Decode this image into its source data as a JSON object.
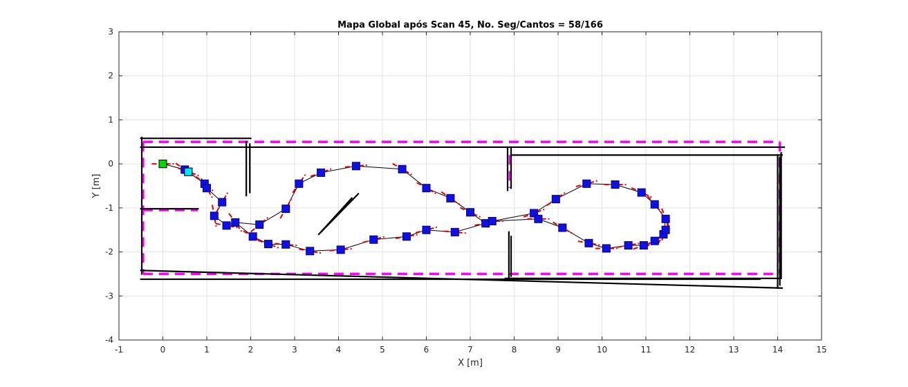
{
  "chart_data": {
    "type": "scatter",
    "title": "Mapa Global após Scan 45, No. Seg/Cantos = 58/166",
    "xlabel": "X [m]",
    "ylabel": "Y [m]",
    "xlim": [
      -1,
      15
    ],
    "ylim": [
      -4,
      3
    ],
    "xticks": [
      "-1",
      "0",
      "1",
      "2",
      "3",
      "4",
      "5",
      "6",
      "7",
      "8",
      "9",
      "10",
      "11",
      "12",
      "13",
      "14",
      "15"
    ],
    "yticks": [
      "-4",
      "-3",
      "-2",
      "-1",
      "0",
      "1",
      "2",
      "3"
    ],
    "grid": true,
    "colors": {
      "pose": "#1010e0",
      "pose_border": "#000080",
      "trajectory": "#000000",
      "heading": "#e00000",
      "wall_estimate": "#000000",
      "true_map": "#ff00ff",
      "start": "#00d800",
      "current": "#00e8ff",
      "grid": "#e3e3e3"
    },
    "true_map_segments": [
      [
        [
          -0.45,
          0.5
        ],
        [
          14.05,
          0.5
        ]
      ],
      [
        [
          -0.45,
          -2.5
        ],
        [
          14.05,
          -2.5
        ]
      ],
      [
        [
          -0.45,
          0.5
        ],
        [
          -0.45,
          -2.5
        ]
      ],
      [
        [
          14.05,
          0.5
        ],
        [
          14.05,
          -2.5
        ]
      ],
      [
        [
          -0.45,
          -1.05
        ],
        [
          0.8,
          -1.05
        ]
      ],
      [
        [
          7.9,
          0.2
        ],
        [
          7.9,
          -0.55
        ]
      ]
    ],
    "estimated_walls": [
      [
        [
          -0.5,
          0.58
        ],
        [
          2.0,
          0.58
        ]
      ],
      [
        [
          -0.5,
          0.38
        ],
        [
          14.15,
          0.38
        ]
      ],
      [
        [
          7.95,
          0.2
        ],
        [
          14.1,
          0.2
        ]
      ],
      [
        [
          -0.48,
          0.6
        ],
        [
          -0.48,
          -2.5
        ]
      ],
      [
        [
          1.9,
          0.5
        ],
        [
          1.9,
          -0.72
        ]
      ],
      [
        [
          1.98,
          0.45
        ],
        [
          1.98,
          -0.65
        ]
      ],
      [
        [
          -0.5,
          -1.02
        ],
        [
          0.8,
          -1.02
        ]
      ],
      [
        [
          7.85,
          0.35
        ],
        [
          7.85,
          -0.6
        ]
      ],
      [
        [
          7.93,
          0.38
        ],
        [
          7.93,
          -0.55
        ]
      ],
      [
        [
          7.88,
          -1.55
        ],
        [
          7.88,
          -2.6
        ]
      ],
      [
        [
          7.93,
          -1.65
        ],
        [
          7.93,
          -2.55
        ]
      ],
      [
        [
          -0.5,
          -2.42
        ],
        [
          14.1,
          -2.82
        ]
      ],
      [
        [
          -0.5,
          -2.62
        ],
        [
          13.6,
          -2.62
        ]
      ],
      [
        [
          7.8,
          -2.6
        ],
        [
          14.05,
          -2.6
        ]
      ],
      [
        [
          14.0,
          0.2
        ],
        [
          14.0,
          -2.82
        ]
      ],
      [
        [
          14.05,
          0.15
        ],
        [
          14.05,
          -2.75
        ]
      ],
      [
        [
          14.08,
          0.25
        ],
        [
          14.08,
          -2.6
        ]
      ],
      [
        [
          3.6,
          -1.55
        ],
        [
          4.45,
          -0.68
        ]
      ],
      [
        [
          3.55,
          -1.6
        ],
        [
          4.3,
          -0.78
        ]
      ]
    ],
    "poses": [
      {
        "x": 0.0,
        "y": 0.0,
        "theta": 0
      },
      {
        "x": 0.5,
        "y": -0.13,
        "theta": -35
      },
      {
        "x": 0.95,
        "y": -0.45,
        "theta": -40
      },
      {
        "x": 1.0,
        "y": -0.55,
        "theta": -60
      },
      {
        "x": 1.17,
        "y": -1.18,
        "theta": -80
      },
      {
        "x": 1.35,
        "y": -0.87,
        "theta": 60
      },
      {
        "x": 1.45,
        "y": -1.4,
        "theta": -10
      },
      {
        "x": 1.65,
        "y": -1.33,
        "theta": -55
      },
      {
        "x": 2.05,
        "y": -1.65,
        "theta": -30
      },
      {
        "x": 2.2,
        "y": -1.38,
        "theta": 40
      },
      {
        "x": 2.4,
        "y": -1.82,
        "theta": -20
      },
      {
        "x": 2.8,
        "y": -1.02,
        "theta": 60
      },
      {
        "x": 2.8,
        "y": -1.83,
        "theta": -5
      },
      {
        "x": 3.1,
        "y": -0.45,
        "theta": 55
      },
      {
        "x": 3.35,
        "y": -1.98,
        "theta": -10
      },
      {
        "x": 3.6,
        "y": -0.2,
        "theta": 20
      },
      {
        "x": 4.05,
        "y": -1.95,
        "theta": 5
      },
      {
        "x": 4.4,
        "y": -0.05,
        "theta": 5
      },
      {
        "x": 4.8,
        "y": -1.72,
        "theta": 15
      },
      {
        "x": 5.45,
        "y": -0.12,
        "theta": -30
      },
      {
        "x": 5.55,
        "y": -1.65,
        "theta": 10
      },
      {
        "x": 6.0,
        "y": -0.55,
        "theta": -30
      },
      {
        "x": 6.0,
        "y": -1.5,
        "theta": 15
      },
      {
        "x": 6.55,
        "y": -0.78,
        "theta": -35
      },
      {
        "x": 6.65,
        "y": -1.55,
        "theta": -5
      },
      {
        "x": 7.0,
        "y": -1.1,
        "theta": -25
      },
      {
        "x": 7.35,
        "y": -1.35,
        "theta": 10
      },
      {
        "x": 7.5,
        "y": -1.3,
        "theta": 0
      },
      {
        "x": 8.45,
        "y": -1.12,
        "theta": 20
      },
      {
        "x": 8.55,
        "y": -1.25,
        "theta": 0
      },
      {
        "x": 8.95,
        "y": -0.8,
        "theta": 35
      },
      {
        "x": 9.1,
        "y": -1.45,
        "theta": -30
      },
      {
        "x": 9.65,
        "y": -0.45,
        "theta": 15
      },
      {
        "x": 9.7,
        "y": -1.8,
        "theta": -10
      },
      {
        "x": 10.1,
        "y": -1.92,
        "theta": 0
      },
      {
        "x": 10.3,
        "y": -0.47,
        "theta": 0
      },
      {
        "x": 10.6,
        "y": -1.85,
        "theta": 10
      },
      {
        "x": 10.9,
        "y": -0.65,
        "theta": -25
      },
      {
        "x": 10.95,
        "y": -1.85,
        "theta": 20
      },
      {
        "x": 11.2,
        "y": -0.92,
        "theta": -50
      },
      {
        "x": 11.2,
        "y": -1.75,
        "theta": 35
      },
      {
        "x": 11.4,
        "y": -1.6,
        "theta": 60
      },
      {
        "x": 11.45,
        "y": -1.25,
        "theta": -70
      },
      {
        "x": 11.45,
        "y": -1.5,
        "theta": 70
      },
      {
        "x": 0.58,
        "y": -0.18,
        "theta": -20
      }
    ],
    "trajectory_order": [
      0,
      1,
      2,
      3,
      5,
      4,
      6,
      7,
      9,
      11,
      13,
      15,
      17,
      19,
      21,
      23,
      25,
      26,
      27,
      28,
      30,
      32,
      35,
      37,
      39,
      42,
      41,
      40,
      38,
      36,
      34,
      33,
      31,
      29,
      27,
      26,
      24,
      22,
      20,
      18,
      16,
      14,
      12,
      10,
      8,
      7
    ],
    "start_pose": {
      "x": 0.0,
      "y": 0.0
    },
    "current_pose": {
      "x": 0.58,
      "y": -0.18
    }
  }
}
